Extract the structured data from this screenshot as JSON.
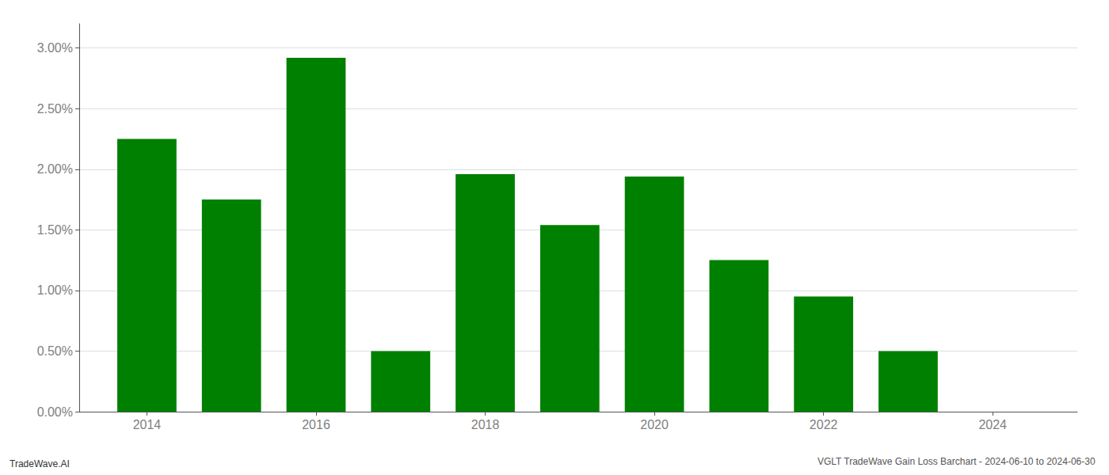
{
  "chart_data": {
    "type": "bar",
    "title": "VGLT TradeWave Gain Loss Barchart - 2024-06-10 to 2024-06-30",
    "annotations": [
      "TradeWave.AI"
    ],
    "x": [
      2014,
      2015,
      2016,
      2017,
      2018,
      2019,
      2020,
      2021,
      2022,
      2023,
      2024
    ],
    "values": [
      0.0225,
      0.0175,
      0.0292,
      0.005,
      0.0196,
      0.0154,
      0.0194,
      0.0125,
      0.0095,
      0.005,
      0.0
    ],
    "color": "#008000",
    "xlim": [
      2013.2,
      2025.0
    ],
    "xticks": [
      2014,
      2016,
      2018,
      2020,
      2022,
      2024
    ],
    "ylim": [
      0,
      0.032
    ],
    "yticks": [
      {
        "value": 0.0,
        "label": "0.00%"
      },
      {
        "value": 0.005,
        "label": "0.50%"
      },
      {
        "value": 0.01,
        "label": "1.00%"
      },
      {
        "value": 0.015,
        "label": "1.50%"
      },
      {
        "value": 0.02,
        "label": "2.00%"
      },
      {
        "value": 0.025,
        "label": "2.50%"
      },
      {
        "value": 0.03,
        "label": "3.00%"
      }
    ],
    "grid": true
  }
}
